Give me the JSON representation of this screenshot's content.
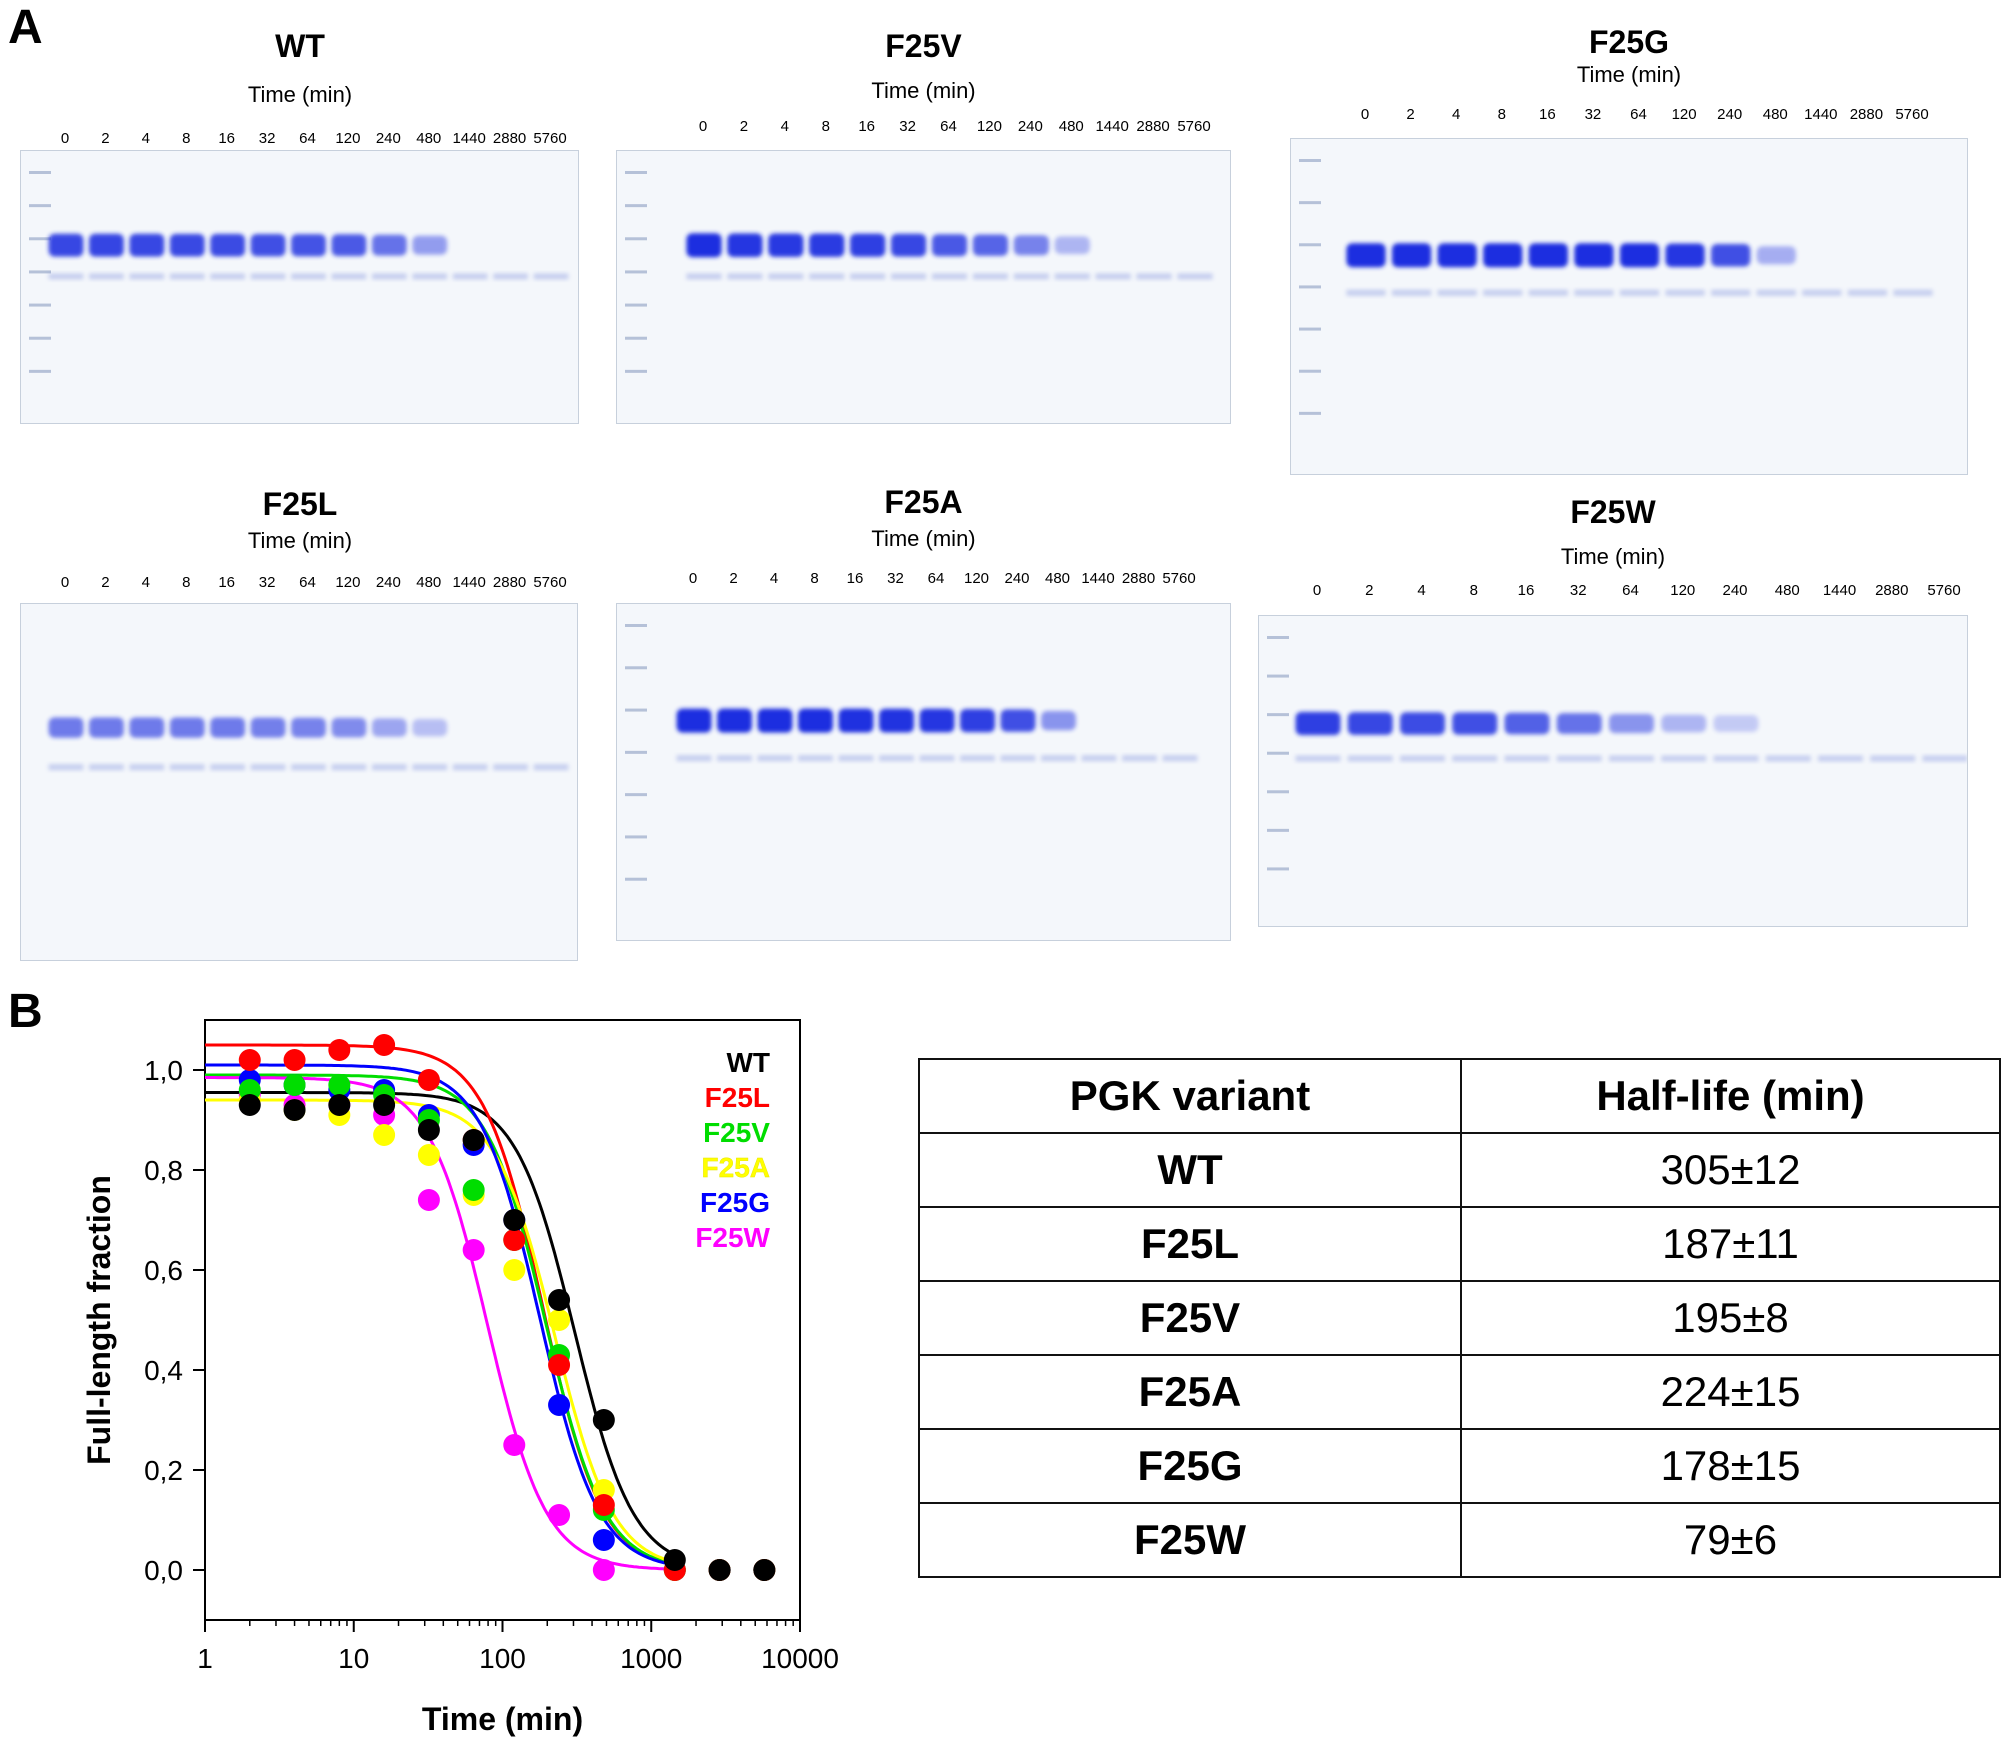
{
  "panel_a_label": "A",
  "panel_b_label": "B",
  "time_axis_label": "Time (min)",
  "lanes": [
    "0",
    "2",
    "4",
    "8",
    "16",
    "32",
    "64",
    "120",
    "240",
    "480",
    "1440",
    "2880",
    "5760"
  ],
  "gels": [
    {
      "name": "WT",
      "time_label": "Time (min)",
      "band_intensity": [
        0.85,
        0.86,
        0.85,
        0.84,
        0.83,
        0.8,
        0.78,
        0.74,
        0.6,
        0.35,
        0.0,
        0.0,
        0.0
      ],
      "ladder": true
    },
    {
      "name": "F25V",
      "time_label": "Time (min)",
      "band_intensity": [
        1.0,
        0.95,
        0.93,
        0.92,
        0.9,
        0.85,
        0.75,
        0.68,
        0.5,
        0.2,
        0.0,
        0.0,
        0.0
      ],
      "ladder": true
    },
    {
      "name": "F25G",
      "time_label": "Time (min)",
      "band_intensity": [
        1.0,
        1.0,
        1.0,
        1.0,
        1.0,
        1.0,
        1.0,
        0.95,
        0.8,
        0.25,
        0.0,
        0.0,
        0.0
      ],
      "ladder": true
    },
    {
      "name": "F25L",
      "time_label": "Time (min)",
      "band_intensity": [
        0.55,
        0.55,
        0.55,
        0.55,
        0.55,
        0.52,
        0.5,
        0.45,
        0.3,
        0.15,
        0.0,
        0.0,
        0.0
      ],
      "ladder": false
    },
    {
      "name": "F25A",
      "time_label": "Time (min)",
      "band_intensity": [
        1.0,
        1.0,
        1.0,
        1.0,
        0.98,
        0.97,
        0.95,
        0.9,
        0.8,
        0.4,
        0.0,
        0.0,
        0.0
      ],
      "ladder": true
    },
    {
      "name": "F25W",
      "time_label": "Time (min)",
      "band_intensity": [
        0.9,
        0.85,
        0.82,
        0.8,
        0.7,
        0.6,
        0.4,
        0.2,
        0.08,
        0.0,
        0.0,
        0.0,
        0.0
      ],
      "ladder": true
    }
  ],
  "table": {
    "headers": [
      "PGK variant",
      "Half-life (min)"
    ],
    "rows": [
      {
        "variant": "WT",
        "half_life": "305±12"
      },
      {
        "variant": "F25L",
        "half_life": "187±11"
      },
      {
        "variant": "F25V",
        "half_life": "195±8"
      },
      {
        "variant": "F25A",
        "half_life": "224±15"
      },
      {
        "variant": "F25G",
        "half_life": "178±15"
      },
      {
        "variant": "F25W",
        "half_life": "79±6"
      }
    ]
  },
  "chart_data": {
    "type": "scatter",
    "title": "",
    "xlabel": "Time (min)",
    "ylabel": "Full-length fraction",
    "xscale": "log",
    "xlim": [
      1,
      10000
    ],
    "ylim": [
      -0.1,
      1.1
    ],
    "xticks": [
      1,
      10,
      100,
      1000,
      10000
    ],
    "xtick_labels": [
      "1",
      "10",
      "100",
      "1000",
      "10000"
    ],
    "yticks": [
      0.0,
      0.2,
      0.4,
      0.6,
      0.8,
      1.0
    ],
    "ytick_labels": [
      "0,0",
      "0,2",
      "0,4",
      "0,6",
      "0,8",
      "1,0"
    ],
    "legend_position": "top-right",
    "x": [
      2,
      4,
      8,
      16,
      32,
      64,
      120,
      240,
      480,
      1440,
      2880,
      5760
    ],
    "series": [
      {
        "name": "WT",
        "color": "#000000",
        "values": [
          0.93,
          0.92,
          0.93,
          0.93,
          0.88,
          0.86,
          0.7,
          0.54,
          0.3,
          0.02,
          0.0,
          0.0
        ],
        "half_life": 305,
        "top": 0.955
      },
      {
        "name": "F25L",
        "color": "#ff0000",
        "values": [
          1.02,
          1.02,
          1.04,
          1.05,
          0.98,
          0.86,
          0.66,
          0.41,
          0.13,
          0.0,
          0.0,
          0.0
        ],
        "half_life": 187,
        "top": 1.05
      },
      {
        "name": "F25V",
        "color": "#00dd00",
        "values": [
          0.96,
          0.97,
          0.97,
          0.95,
          0.9,
          0.76,
          0.66,
          0.43,
          0.12,
          0.0,
          0.0,
          0.0
        ],
        "half_life": 195,
        "top": 0.99
      },
      {
        "name": "F25A",
        "color": "#ffff00",
        "values": [
          0.94,
          0.92,
          0.91,
          0.87,
          0.83,
          0.75,
          0.6,
          0.5,
          0.16,
          0.0,
          0.0,
          0.0
        ],
        "half_life": 224,
        "top": 0.94
      },
      {
        "name": "F25G",
        "color": "#0000ff",
        "values": [
          0.98,
          0.97,
          0.96,
          0.96,
          0.91,
          0.85,
          0.7,
          0.33,
          0.06,
          0.0,
          0.0,
          0.0
        ],
        "half_life": 178,
        "top": 1.01
      },
      {
        "name": "F25W",
        "color": "#ff00ff",
        "values": [
          0.95,
          0.93,
          0.93,
          0.91,
          0.74,
          0.64,
          0.25,
          0.11,
          0.0,
          0.0,
          0.0,
          0.0
        ],
        "half_life": 79,
        "top": 0.985
      }
    ]
  }
}
